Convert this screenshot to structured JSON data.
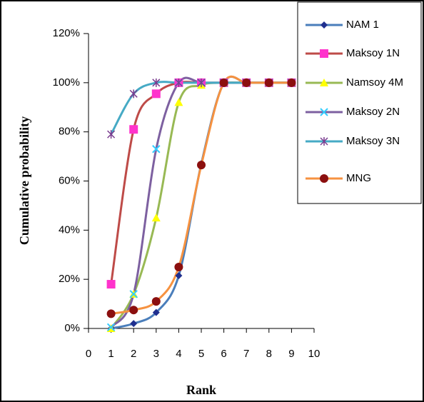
{
  "chart_data": {
    "type": "line",
    "x_label": "Rank",
    "y_label": "Cumulative probability",
    "x": [
      1,
      2,
      3,
      4,
      5,
      6,
      7,
      8,
      9
    ],
    "xlim": [
      0,
      10
    ],
    "xticks": [
      0,
      1,
      2,
      3,
      4,
      5,
      6,
      7,
      8,
      9,
      10
    ],
    "ylim": [
      0,
      120
    ],
    "yticks": [
      {
        "value": 0,
        "label": "0%"
      },
      {
        "value": 20,
        "label": "20%"
      },
      {
        "value": 40,
        "label": "40%"
      },
      {
        "value": 60,
        "label": "60%"
      },
      {
        "value": 80,
        "label": "80%"
      },
      {
        "value": 100,
        "label": "100%"
      },
      {
        "value": 120,
        "label": "120%"
      }
    ],
    "smooth": true,
    "legend": "top-right",
    "series": [
      {
        "name": "NAM 1",
        "color": "#4a7ebb",
        "marker": "diamond",
        "marker_color": "#1f2f8f",
        "values": [
          0,
          2,
          6.5,
          21.5,
          67,
          100,
          100,
          100,
          100
        ]
      },
      {
        "name": "Maksoy  1N",
        "color": "#be4b48",
        "marker": "square",
        "marker_color": "#ff33cc",
        "values": [
          18,
          81,
          95.5,
          100,
          100,
          100,
          100,
          100,
          100
        ]
      },
      {
        "name": "Namsoy 4M",
        "color": "#98b954",
        "marker": "triangle",
        "marker_color": "#ffff00",
        "values": [
          0,
          14,
          45,
          92,
          99,
          100,
          100,
          100,
          100
        ]
      },
      {
        "name": "Maksoy 2N",
        "color": "#7d60a0",
        "marker": "x",
        "marker_color": "#33ccff",
        "values": [
          0.5,
          14,
          73,
          100,
          100,
          100,
          100,
          100,
          100
        ]
      },
      {
        "name": "Maksoy 3N",
        "color": "#46aac5",
        "marker": "star",
        "marker_color": "#7a3c8f",
        "values": [
          79,
          95.5,
          100,
          100,
          100,
          100,
          100,
          100,
          100
        ]
      },
      {
        "name": "MNG",
        "color": "#f69240",
        "marker": "circle",
        "marker_color": "#8b0f0f",
        "values": [
          6,
          7.5,
          11,
          25,
          66.5,
          100,
          100,
          100,
          100
        ]
      }
    ]
  }
}
